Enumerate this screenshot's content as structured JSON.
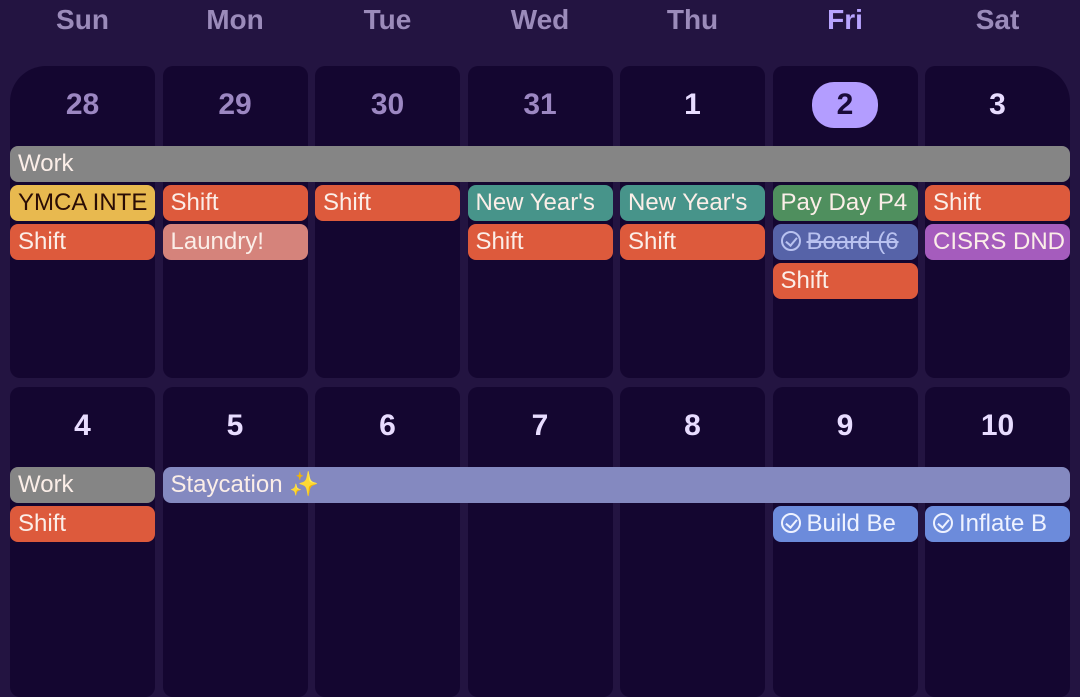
{
  "weekdays": [
    "Sun",
    "Mon",
    "Tue",
    "Wed",
    "Thu",
    "Fri",
    "Sat"
  ],
  "today_index": 5,
  "colors": {
    "today": "#b39dff",
    "work": "#858585",
    "shift": "#dd5a3c",
    "yellow": "#e8b94f",
    "teal": "#47948a",
    "green": "#4f8f5e",
    "blue": "#5663a8",
    "purple": "#a55cbd",
    "salmon": "#d5837b",
    "lavender": "#8489c0",
    "task": "#6c8bdb"
  },
  "weeks": [
    {
      "dates": [
        "28",
        "29",
        "30",
        "31",
        "1",
        "2",
        "3"
      ],
      "past": [
        true,
        true,
        true,
        true,
        false,
        false,
        false
      ],
      "events": [
        {
          "title": "Work",
          "start": 0,
          "span": 7,
          "row": 0,
          "color": "work"
        },
        {
          "title": "YMCA INTE",
          "start": 0,
          "span": 1,
          "row": 1,
          "color": "yellow",
          "dark": true
        },
        {
          "title": "Shift",
          "start": 0,
          "span": 1,
          "row": 2,
          "color": "shift"
        },
        {
          "title": "Shift",
          "start": 1,
          "span": 1,
          "row": 1,
          "color": "shift"
        },
        {
          "title": "Laundry!",
          "start": 1,
          "span": 1,
          "row": 2,
          "color": "salmon"
        },
        {
          "title": "Shift",
          "start": 2,
          "span": 1,
          "row": 1,
          "color": "shift"
        },
        {
          "title": "New Year's",
          "start": 3,
          "span": 1,
          "row": 1,
          "color": "teal"
        },
        {
          "title": "Shift",
          "start": 3,
          "span": 1,
          "row": 2,
          "color": "shift"
        },
        {
          "title": "New Year's",
          "start": 4,
          "span": 1,
          "row": 1,
          "color": "teal"
        },
        {
          "title": "Shift",
          "start": 4,
          "span": 1,
          "row": 2,
          "color": "shift"
        },
        {
          "title": "Pay Day P4",
          "start": 5,
          "span": 1,
          "row": 1,
          "color": "green"
        },
        {
          "title": "Board (6",
          "start": 5,
          "span": 1,
          "row": 2,
          "color": "blue",
          "task": true,
          "done": true
        },
        {
          "title": "Shift",
          "start": 5,
          "span": 1,
          "row": 3,
          "color": "shift"
        },
        {
          "title": "Shift",
          "start": 6,
          "span": 1,
          "row": 1,
          "color": "shift"
        },
        {
          "title": "CISRS DND",
          "start": 6,
          "span": 1,
          "row": 2,
          "color": "purple"
        }
      ]
    },
    {
      "dates": [
        "4",
        "5",
        "6",
        "7",
        "8",
        "9",
        "10"
      ],
      "past": [
        false,
        false,
        false,
        false,
        false,
        false,
        false
      ],
      "events": [
        {
          "title": "Work",
          "start": 0,
          "span": 1,
          "row": 0,
          "color": "work"
        },
        {
          "title": "Shift",
          "start": 0,
          "span": 1,
          "row": 1,
          "color": "shift"
        },
        {
          "title": "Staycation ✨",
          "start": 1,
          "span": 6,
          "row": 0,
          "color": "lavender"
        },
        {
          "title": "Build Be",
          "start": 5,
          "span": 1,
          "row": 1,
          "color": "task",
          "task": true
        },
        {
          "title": "Inflate B",
          "start": 6,
          "span": 1,
          "row": 1,
          "color": "task",
          "task": true
        }
      ]
    }
  ]
}
